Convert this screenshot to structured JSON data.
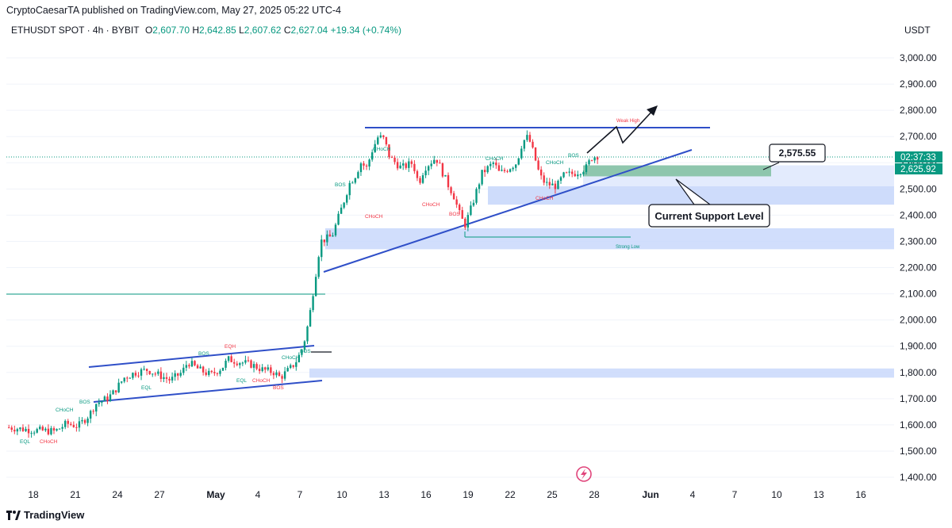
{
  "header": {
    "published": "CryptoCaesarTA published on TradingView.com, May 27, 2025 05:22 UTC-4",
    "symbol": "ETHUSDT SPOT · 4h · BYBIT",
    "o_label": "O",
    "o_value": "2,607.70",
    "h_label": "H",
    "h_value": "2,642.85",
    "l_label": "L",
    "l_value": "2,607.62",
    "c_label": "C",
    "c_value": "2,627.04",
    "change": "+19.34 (+0.74%)",
    "currency": "USDT"
  },
  "footer": {
    "brand": "TradingView"
  },
  "colors": {
    "up": "#089981",
    "down": "#f23645",
    "trend": "#2f4fc8",
    "zone_blue": "#c9d8fb",
    "zone_green": "#7fbf9f",
    "price_tag": "#089981"
  },
  "chart_data": {
    "type": "candlestick",
    "y_axis": {
      "ylim": [
        1360,
        3110
      ],
      "ticks": [
        3000,
        2900,
        2800,
        2700,
        2600,
        2500,
        2400,
        2300,
        2200,
        2100,
        2000,
        1900,
        1800,
        1700,
        1600,
        1500,
        1400
      ],
      "tick_labels": [
        "3,000.00",
        "2,900.00",
        "2,800.00",
        "2,700.00",
        "2,600.00",
        "2,500.00",
        "2,400.00",
        "2,300.00",
        "2,200.00",
        "2,100.00",
        "2,000.00",
        "1,900.00",
        "1,800.00",
        "1,700.00",
        "1,600.00",
        "1,500.00",
        "1,400.00"
      ]
    },
    "x_axis": {
      "tick_labels": [
        "18",
        "21",
        "24",
        "27",
        "May",
        "4",
        "7",
        "10",
        "13",
        "16",
        "19",
        "22",
        "25",
        "28",
        "Jun",
        "4",
        "7",
        "10",
        "13",
        "16"
      ],
      "bold_labels": [
        "May",
        "Jun"
      ]
    },
    "series_path": [
      [
        0,
        1590
      ],
      [
        4,
        1580
      ],
      [
        8,
        1575
      ],
      [
        10,
        1605
      ],
      [
        12,
        1595
      ],
      [
        14,
        1640
      ],
      [
        15,
        1680
      ],
      [
        17,
        1700
      ],
      [
        18,
        1720
      ],
      [
        20,
        1780
      ],
      [
        22,
        1800
      ],
      [
        24,
        1810
      ],
      [
        26,
        1790
      ],
      [
        28,
        1770
      ],
      [
        30,
        1800
      ],
      [
        31,
        1840
      ],
      [
        33,
        1810
      ],
      [
        35,
        1790
      ],
      [
        37,
        1820
      ],
      [
        38,
        1850
      ],
      [
        40,
        1840
      ],
      [
        42,
        1830
      ],
      [
        44,
        1810
      ],
      [
        46,
        1800
      ],
      [
        47,
        1780
      ],
      [
        49,
        1820
      ],
      [
        50,
        1850
      ],
      [
        51,
        1900
      ],
      [
        52,
        2000
      ],
      [
        53,
        2150
      ],
      [
        54,
        2300
      ],
      [
        56,
        2320
      ],
      [
        58,
        2450
      ],
      [
        59,
        2520
      ],
      [
        60,
        2550
      ],
      [
        61,
        2600
      ],
      [
        62,
        2580
      ],
      [
        63,
        2650
      ],
      [
        64,
        2700
      ],
      [
        65,
        2690
      ],
      [
        66,
        2620
      ],
      [
        68,
        2580
      ],
      [
        70,
        2600
      ],
      [
        71,
        2520
      ],
      [
        72,
        2580
      ],
      [
        74,
        2620
      ],
      [
        76,
        2520
      ],
      [
        77,
        2480
      ],
      [
        78,
        2410
      ],
      [
        79,
        2360
      ],
      [
        80,
        2420
      ],
      [
        82,
        2560
      ],
      [
        84,
        2600
      ],
      [
        85,
        2560
      ],
      [
        86,
        2570
      ],
      [
        88,
        2600
      ],
      [
        89,
        2680
      ],
      [
        90,
        2700
      ],
      [
        91,
        2630
      ],
      [
        92,
        2550
      ],
      [
        93,
        2520
      ],
      [
        95,
        2510
      ],
      [
        96,
        2550
      ],
      [
        98,
        2560
      ],
      [
        100,
        2580
      ],
      [
        101,
        2620
      ],
      [
        102,
        2627.04
      ]
    ],
    "price_tags": [
      {
        "label": "02:37:33",
        "value": 2627.04
      },
      {
        "label": "2,625.92",
        "value": 2625.92
      }
    ],
    "zones": [
      {
        "name": "resistance-zone-green",
        "y": [
          2548,
          2590
        ]
      },
      {
        "name": "support-zone-blue",
        "y": [
          2440,
          2510
        ]
      },
      {
        "name": "strong-low-zone",
        "y": [
          2270,
          2350
        ]
      },
      {
        "name": "lower-zone",
        "y": [
          1780,
          1815
        ]
      }
    ],
    "annotations": {
      "target_price": "2,575.55",
      "support_label": "Current Support Level",
      "weak_high": "Weak High",
      "strong_low": "Strong Low",
      "smc_labels": [
        "BOS",
        "BOS",
        "BOS",
        "BOS",
        "BOS",
        "BOS",
        "BOS",
        "CHoCH",
        "CHoCH",
        "CHoCH",
        "CHoCH",
        "CHoCH",
        "CHoCH",
        "CHoCH",
        "CHoCH",
        "CHoCH",
        "CHoCH",
        "EQL",
        "EQL",
        "EQL",
        "EQH"
      ]
    }
  }
}
